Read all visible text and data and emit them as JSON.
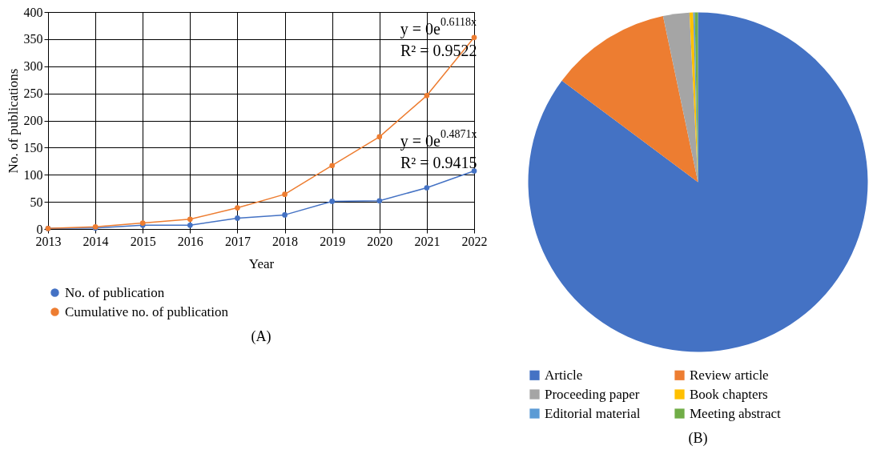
{
  "chart_data": [
    {
      "type": "line",
      "title": "(A)",
      "xlabel": "Year",
      "ylabel": "No. of publications",
      "x": [
        2013,
        2014,
        2015,
        2016,
        2017,
        2018,
        2019,
        2020,
        2021,
        2022
      ],
      "xlim": [
        2013,
        2022
      ],
      "xticks": [
        2013,
        2014,
        2015,
        2016,
        2017,
        2018,
        2019,
        2020,
        2021,
        2022
      ],
      "ylim": [
        0,
        400
      ],
      "yticks": [
        0,
        50,
        100,
        150,
        200,
        250,
        300,
        350,
        400
      ],
      "grid": true,
      "legend": "bottom",
      "marker": "circle",
      "series": [
        {
          "name": "No. of publication",
          "color": "#4472c4",
          "values": [
            1,
            2,
            7,
            7,
            20,
            26,
            51,
            52,
            76,
            107
          ]
        },
        {
          "name": "Cumulative no. of publication",
          "color": "#ed7d31",
          "values": [
            1,
            4,
            11,
            18,
            39,
            64,
            117,
            170,
            246,
            353
          ]
        }
      ],
      "annotations": [
        "y = 0e$^{0.6118x}$",
        "R² = 0.9522",
        "y = 0e$^{0.4871x}$",
        "R² = 0.9415"
      ]
    },
    {
      "type": "pie",
      "title": "(B)",
      "legend": "bottom",
      "categories": [
        "Article",
        "Review article",
        "Proceeding paper",
        "Book chapters",
        "Editorial material",
        "Meeting abstract"
      ],
      "values": [
        85.2,
        11.5,
        2.5,
        0.35,
        0.15,
        0.3
      ],
      "colors": [
        "#4472c4",
        "#ed7d31",
        "#a5a5a5",
        "#ffc000",
        "#5b9bd5",
        "#70ad47"
      ]
    }
  ]
}
